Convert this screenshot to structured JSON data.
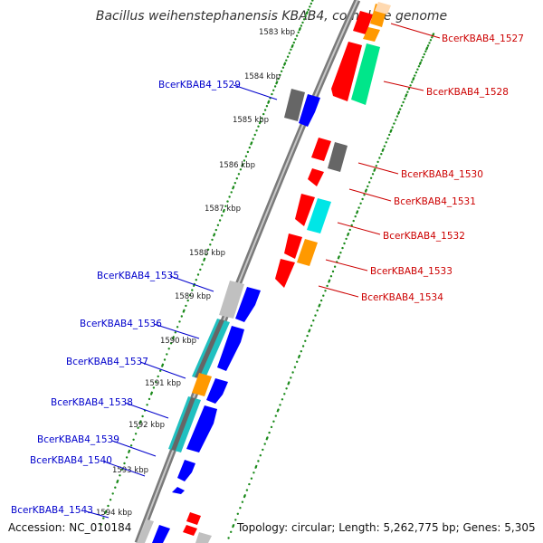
{
  "title": "Bacillus weihenstephanensis KBAB4, complete genome",
  "footer": {
    "accession": "Accession: NC_010184",
    "topology": "Topology: circular; Length: 5,262,775 bp; Genes: 5,305"
  },
  "colors": {
    "forward_label": "#0000cc",
    "reverse_label": "#cc0000",
    "backbone": "#8c8c8c",
    "ticks": "#1a8a1a",
    "red": "#ff0000",
    "orange": "#ff9900",
    "green": "#00e68a",
    "cyan": "#00e6e6",
    "blue": "#0000ff",
    "gray": "#777777",
    "lightgray": "#c0c0c0"
  },
  "kbp_ticks": [
    "1583 kbp",
    "1584 kbp",
    "1585 kbp",
    "1586 kbp",
    "1587 kbp",
    "1588 kbp",
    "1589 kbp",
    "1590 kbp",
    "1591 kbp",
    "1592 kbp",
    "1593 kbp",
    "1594 kbp"
  ],
  "reverse_genes": [
    "BcerKBAB4_1527",
    "BcerKBAB4_1528",
    "BcerKBAB4_1530",
    "BcerKBAB4_1531",
    "BcerKBAB4_1532",
    "BcerKBAB4_1533",
    "BcerKBAB4_1534"
  ],
  "forward_genes": [
    "BcerKBAB4_1529",
    "BcerKBAB4_1535",
    "BcerKBAB4_1536",
    "BcerKBAB4_1537",
    "BcerKBAB4_1538",
    "BcerKBAB4_1539",
    "BcerKBAB4_1540",
    "BcerKBAB4_1543"
  ]
}
